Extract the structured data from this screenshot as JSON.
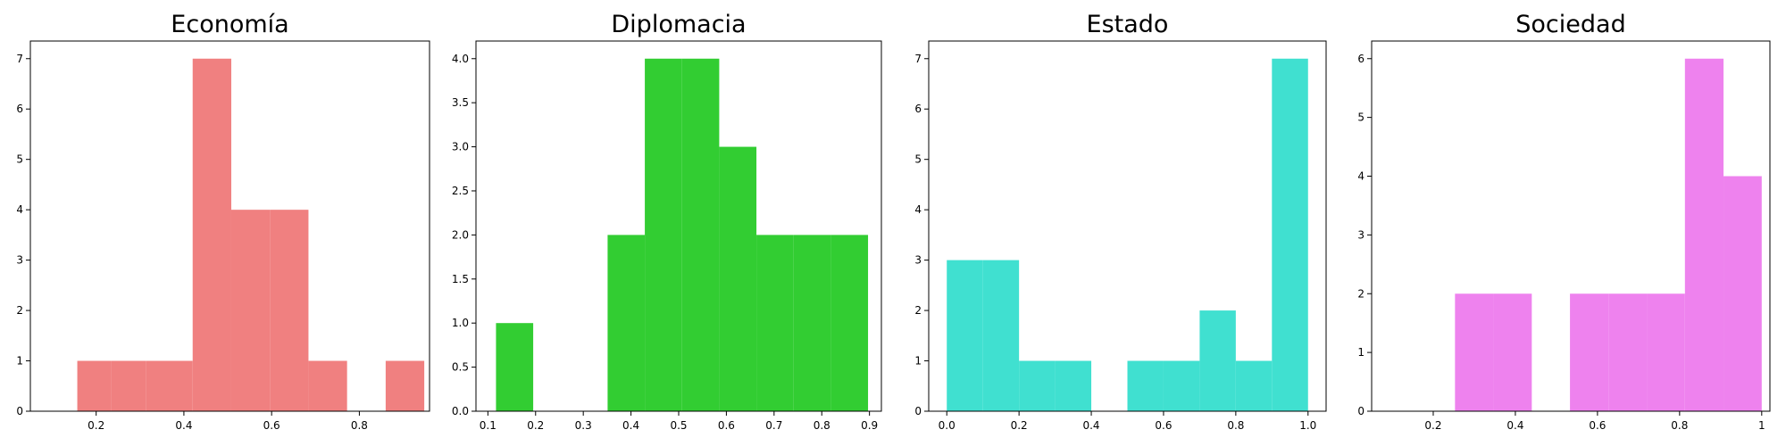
{
  "chart_data": [
    {
      "type": "bar",
      "title": "Economía",
      "color": "#F08080",
      "xlim": [
        0.05,
        0.96
      ],
      "ylim": [
        0,
        7.35
      ],
      "xticks": [
        0.2,
        0.4,
        0.6,
        0.8
      ],
      "yticks": [
        0,
        1,
        2,
        3,
        4,
        5,
        6,
        7
      ],
      "tick_format": "short",
      "bins": [
        {
          "x0": 0.157,
          "x1": 0.235,
          "value": 1
        },
        {
          "x0": 0.235,
          "x1": 0.313,
          "value": 1
        },
        {
          "x0": 0.313,
          "x1": 0.42,
          "value": 1
        },
        {
          "x0": 0.42,
          "x1": 0.508,
          "value": 7
        },
        {
          "x0": 0.508,
          "x1": 0.596,
          "value": 4
        },
        {
          "x0": 0.596,
          "x1": 0.684,
          "value": 4
        },
        {
          "x0": 0.684,
          "x1": 0.772,
          "value": 1
        },
        {
          "x0": 0.772,
          "x1": 0.86,
          "value": 0
        },
        {
          "x0": 0.86,
          "x1": 0.948,
          "value": 1
        }
      ]
    },
    {
      "type": "bar",
      "title": "Diplomacia",
      "color": "#32CD32",
      "xlim": [
        0.075,
        0.925
      ],
      "ylim": [
        0,
        4.2
      ],
      "xticks": [
        0.1,
        0.2,
        0.3,
        0.4,
        0.5,
        0.6,
        0.7,
        0.8,
        0.9
      ],
      "yticks": [
        0.0,
        0.5,
        1.0,
        1.5,
        2.0,
        2.5,
        3.0,
        3.5,
        4.0
      ],
      "tick_format": "fixed1",
      "bins": [
        {
          "x0": 0.117,
          "x1": 0.195,
          "value": 1
        },
        {
          "x0": 0.195,
          "x1": 0.273,
          "value": 0
        },
        {
          "x0": 0.273,
          "x1": 0.351,
          "value": 0
        },
        {
          "x0": 0.351,
          "x1": 0.429,
          "value": 2
        },
        {
          "x0": 0.429,
          "x1": 0.507,
          "value": 4
        },
        {
          "x0": 0.507,
          "x1": 0.585,
          "value": 4
        },
        {
          "x0": 0.585,
          "x1": 0.663,
          "value": 3
        },
        {
          "x0": 0.663,
          "x1": 0.741,
          "value": 2
        },
        {
          "x0": 0.741,
          "x1": 0.819,
          "value": 2
        },
        {
          "x0": 0.819,
          "x1": 0.897,
          "value": 2
        }
      ]
    },
    {
      "type": "bar",
      "title": "Estado",
      "color": "#40E0D0",
      "xlim": [
        -0.05,
        1.05
      ],
      "ylim": [
        0,
        7.35
      ],
      "xticks": [
        0.0,
        0.2,
        0.4,
        0.6,
        0.8,
        1.0
      ],
      "yticks": [
        0,
        1,
        2,
        3,
        4,
        5,
        6,
        7
      ],
      "tick_format": "fixed1x",
      "bins": [
        {
          "x0": 0.0,
          "x1": 0.1,
          "value": 3
        },
        {
          "x0": 0.1,
          "x1": 0.2,
          "value": 3
        },
        {
          "x0": 0.2,
          "x1": 0.3,
          "value": 1
        },
        {
          "x0": 0.3,
          "x1": 0.4,
          "value": 1
        },
        {
          "x0": 0.4,
          "x1": 0.5,
          "value": 0
        },
        {
          "x0": 0.5,
          "x1": 0.6,
          "value": 1
        },
        {
          "x0": 0.6,
          "x1": 0.7,
          "value": 1
        },
        {
          "x0": 0.7,
          "x1": 0.8,
          "value": 2
        },
        {
          "x0": 0.8,
          "x1": 0.9,
          "value": 1
        },
        {
          "x0": 0.9,
          "x1": 1.0,
          "value": 7
        }
      ]
    },
    {
      "type": "bar",
      "title": "Sociedad",
      "color": "#EE82EE",
      "xlim": [
        0.05,
        1.02
      ],
      "ylim": [
        0,
        6.3
      ],
      "xticks": [
        0.2,
        0.4,
        0.6,
        0.8,
        1.0
      ],
      "yticks": [
        0,
        1,
        2,
        3,
        4,
        5,
        6
      ],
      "tick_format": "short",
      "bins": [
        {
          "x0": 0.253,
          "x1": 0.347,
          "value": 2
        },
        {
          "x0": 0.347,
          "x1": 0.44,
          "value": 2
        },
        {
          "x0": 0.44,
          "x1": 0.533,
          "value": 0
        },
        {
          "x0": 0.533,
          "x1": 0.627,
          "value": 2
        },
        {
          "x0": 0.627,
          "x1": 0.72,
          "value": 2
        },
        {
          "x0": 0.72,
          "x1": 0.813,
          "value": 2
        },
        {
          "x0": 0.813,
          "x1": 0.907,
          "value": 6
        },
        {
          "x0": 0.907,
          "x1": 1.0,
          "value": 4
        }
      ]
    }
  ]
}
